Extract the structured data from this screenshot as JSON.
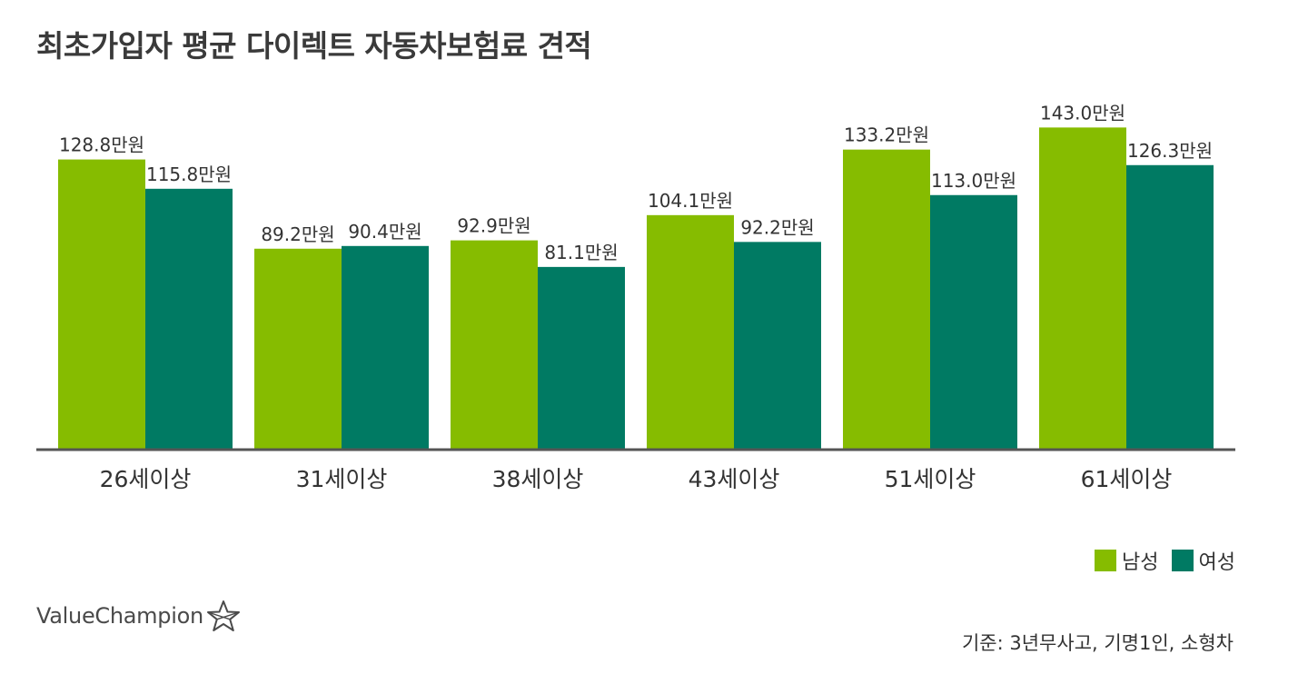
{
  "title": "최초가입자 평균 다이렉트 자동차보험료 견적",
  "chart_data": {
    "type": "bar",
    "categories": [
      "26세이상",
      "31세이상",
      "38세이상",
      "43세이상",
      "51세이상",
      "61세이상"
    ],
    "series": [
      {
        "name": "남성",
        "color": "#86bc00",
        "values": [
          128.8,
          89.2,
          92.9,
          104.1,
          133.2,
          143.0
        ],
        "labels": [
          "128.8만원",
          "89.2만원",
          "92.9만원",
          "104.1만원",
          "133.2만원",
          "143.0만원"
        ]
      },
      {
        "name": "여성",
        "color": "#007a63",
        "values": [
          115.8,
          90.4,
          81.1,
          92.2,
          113.0,
          126.3
        ],
        "labels": [
          "115.8만원",
          "90.4만원",
          "81.1만원",
          "92.2만원",
          "113.0만원",
          "126.3만원"
        ]
      }
    ],
    "ylim": [
      0,
      150
    ],
    "grid": false,
    "legend": "bottom-right"
  },
  "legend": {
    "male": "남성",
    "female": "여성"
  },
  "brand": {
    "logo_text": "ValueChampion",
    "logo_icon": "star-outline-icon"
  },
  "footnote": "기준: 3년무사고, 기명1인, 소형차",
  "colors": {
    "male": "#86bc00",
    "female": "#007a63",
    "axis": "#555555"
  }
}
